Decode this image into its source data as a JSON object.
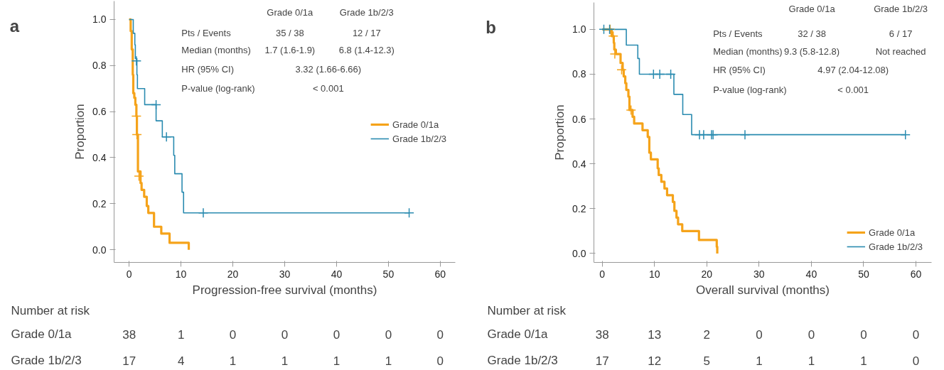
{
  "chart_data": [
    {
      "type": "step",
      "title": "a",
      "xlabel": "Progression-free survival (months)",
      "ylabel": "Proportion",
      "xlim": [
        -2.9,
        62.9
      ],
      "ylim": [
        -0.055,
        1.08
      ],
      "xticks": [
        0,
        10,
        20,
        30,
        40,
        50,
        60
      ],
      "yticks": [
        {
          "value": 0,
          "label": "0.0"
        },
        {
          "value": 0.2,
          "label": "0.2"
        },
        {
          "value": 0.4,
          "label": "0.4"
        },
        {
          "value": 0.6,
          "label": "0.6"
        },
        {
          "value": 0.8,
          "label": "0.8"
        },
        {
          "value": 1,
          "label": "1.0"
        }
      ],
      "grid": false,
      "legend": "right",
      "series": [
        {
          "name": "Grade 0/1a",
          "color": "#f5a31a",
          "x": [
            0,
            0.3,
            0.5,
            0.7,
            0.8,
            1.0,
            1.2,
            1.4,
            1.5,
            1.7,
            2.2,
            2.4,
            2.9,
            3.4,
            3.7,
            4.8,
            6.2,
            7.8,
            11.5
          ],
          "values": [
            1.0,
            0.95,
            0.87,
            0.76,
            0.68,
            0.66,
            0.63,
            0.58,
            0.5,
            0.34,
            0.29,
            0.26,
            0.23,
            0.19,
            0.16,
            0.1,
            0.07,
            0.03,
            0.0
          ]
        },
        {
          "name": "Grade 1b/2/3",
          "color": "#2a8bb0",
          "x": [
            0,
            0.8,
            1.1,
            1.2,
            1.5,
            1.6,
            3.0,
            5.2,
            6.4,
            8.6,
            8.8,
            10.2,
            10.5,
            54
          ],
          "values": [
            1.0,
            0.94,
            0.89,
            0.83,
            0.76,
            0.7,
            0.63,
            0.56,
            0.49,
            0.41,
            0.33,
            0.25,
            0.16,
            0.16
          ]
        },
        {
          "type": "scatter",
          "marker": "cross",
          "color": "#f5a31a",
          "x": [
            1.4,
            1.5,
            1.9
          ],
          "values": [
            0.58,
            0.5,
            0.32
          ]
        },
        {
          "type": "scatter",
          "marker": "cross",
          "color": "#2a8bb0",
          "x": [
            1.4,
            5.2,
            7.2,
            14.3,
            54
          ],
          "values": [
            0.82,
            0.63,
            0.49,
            0.16,
            0.16
          ]
        }
      ],
      "annotations": [
        "Grade 0/1a",
        "Grade 1b/2/3",
        "Pts / Events",
        "35 / 38",
        "12 / 17",
        "Median (months)",
        "1.7 (1.6-1.9)",
        "6.8 (1.4-12.3)",
        "HR (95% CI)",
        "3.32 (1.66-6.66)",
        "P-value (log-rank)",
        "< 0.001",
        "Number at risk",
        "Grade 0/1a",
        "38",
        "1",
        "0",
        "0",
        "0",
        "0",
        "0",
        "Grade 1b/2/3",
        "17",
        "4",
        "1",
        "1",
        "1",
        "1",
        "0"
      ]
    },
    {
      "type": "step",
      "title": "b",
      "xlabel": "Overall survival (months)",
      "ylabel": "Proportion",
      "xlim": [
        -1.6,
        63
      ],
      "ylim": [
        -0.04,
        1.12
      ],
      "xticks": [
        0,
        10,
        20,
        30,
        40,
        50,
        60
      ],
      "yticks": [
        {
          "value": 0,
          "label": "0.0"
        },
        {
          "value": 0.2,
          "label": "0.2"
        },
        {
          "value": 0.4,
          "label": "0.4"
        },
        {
          "value": 0.6,
          "label": "0.6"
        },
        {
          "value": 0.8,
          "label": "0.8"
        },
        {
          "value": 1,
          "label": "1.0"
        }
      ],
      "grid": false,
      "legend": "bottom right",
      "series": [
        {
          "name": "Grade 0/1a",
          "color": "#f5a31a",
          "x": [
            0,
            1.8,
            2.2,
            2.3,
            2.6,
            3.5,
            3.9,
            4.1,
            4.4,
            4.6,
            5.0,
            5.2,
            5.8,
            6.1,
            7.7,
            8.7,
            9.0,
            9.3,
            10.6,
            10.8,
            11.3,
            11.9,
            12.4,
            13.5,
            13.8,
            14.2,
            14.5,
            15.3,
            18.5,
            21.9,
            22.0
          ],
          "values": [
            1.0,
            0.97,
            0.94,
            0.91,
            0.89,
            0.85,
            0.82,
            0.79,
            0.76,
            0.73,
            0.7,
            0.64,
            0.61,
            0.58,
            0.55,
            0.52,
            0.45,
            0.42,
            0.38,
            0.35,
            0.32,
            0.29,
            0.26,
            0.23,
            0.19,
            0.16,
            0.13,
            0.1,
            0.06,
            0.03,
            0.0
          ]
        },
        {
          "name": "Grade 1b/2/3",
          "color": "#2a8bb0",
          "x": [
            0,
            4.6,
            6.8,
            7.1,
            13.7,
            15.4,
            17.1,
            58
          ],
          "values": [
            1.0,
            0.93,
            0.87,
            0.8,
            0.71,
            0.62,
            0.53,
            0.53
          ]
        },
        {
          "type": "scatter",
          "marker": "cross",
          "color": "#f5a31a",
          "x": [
            1.5,
            2.1,
            2.4,
            3.7,
            5.5
          ],
          "values": [
            1.0,
            0.97,
            0.89,
            0.82,
            0.64
          ]
        },
        {
          "type": "scatter",
          "marker": "cross",
          "color": "#2a8bb0",
          "x": [
            0.3,
            1.4,
            9.8,
            11.0,
            13.1,
            18.6,
            19.4,
            20.9,
            21.2,
            27.3,
            58
          ],
          "values": [
            1.0,
            1.0,
            0.8,
            0.8,
            0.8,
            0.53,
            0.53,
            0.53,
            0.53,
            0.53,
            0.53
          ]
        }
      ],
      "annotations": [
        "Grade 0/1a",
        "Grade 1b/2/3",
        "Pts / Events",
        "32 / 38",
        "6 / 17",
        "Median (months)",
        "9.3 (5.8-12.8)",
        "Not reached",
        "HR (95% CI)",
        "4.97 (2.04-12.08)",
        "P-value (log-rank)",
        "< 0.001",
        "Number at risk",
        "Grade 0/1a",
        "38",
        "13",
        "2",
        "0",
        "0",
        "0",
        "0",
        "Grade 1b/2/3",
        "17",
        "12",
        "5",
        "1",
        "1",
        "1",
        "0"
      ]
    }
  ]
}
